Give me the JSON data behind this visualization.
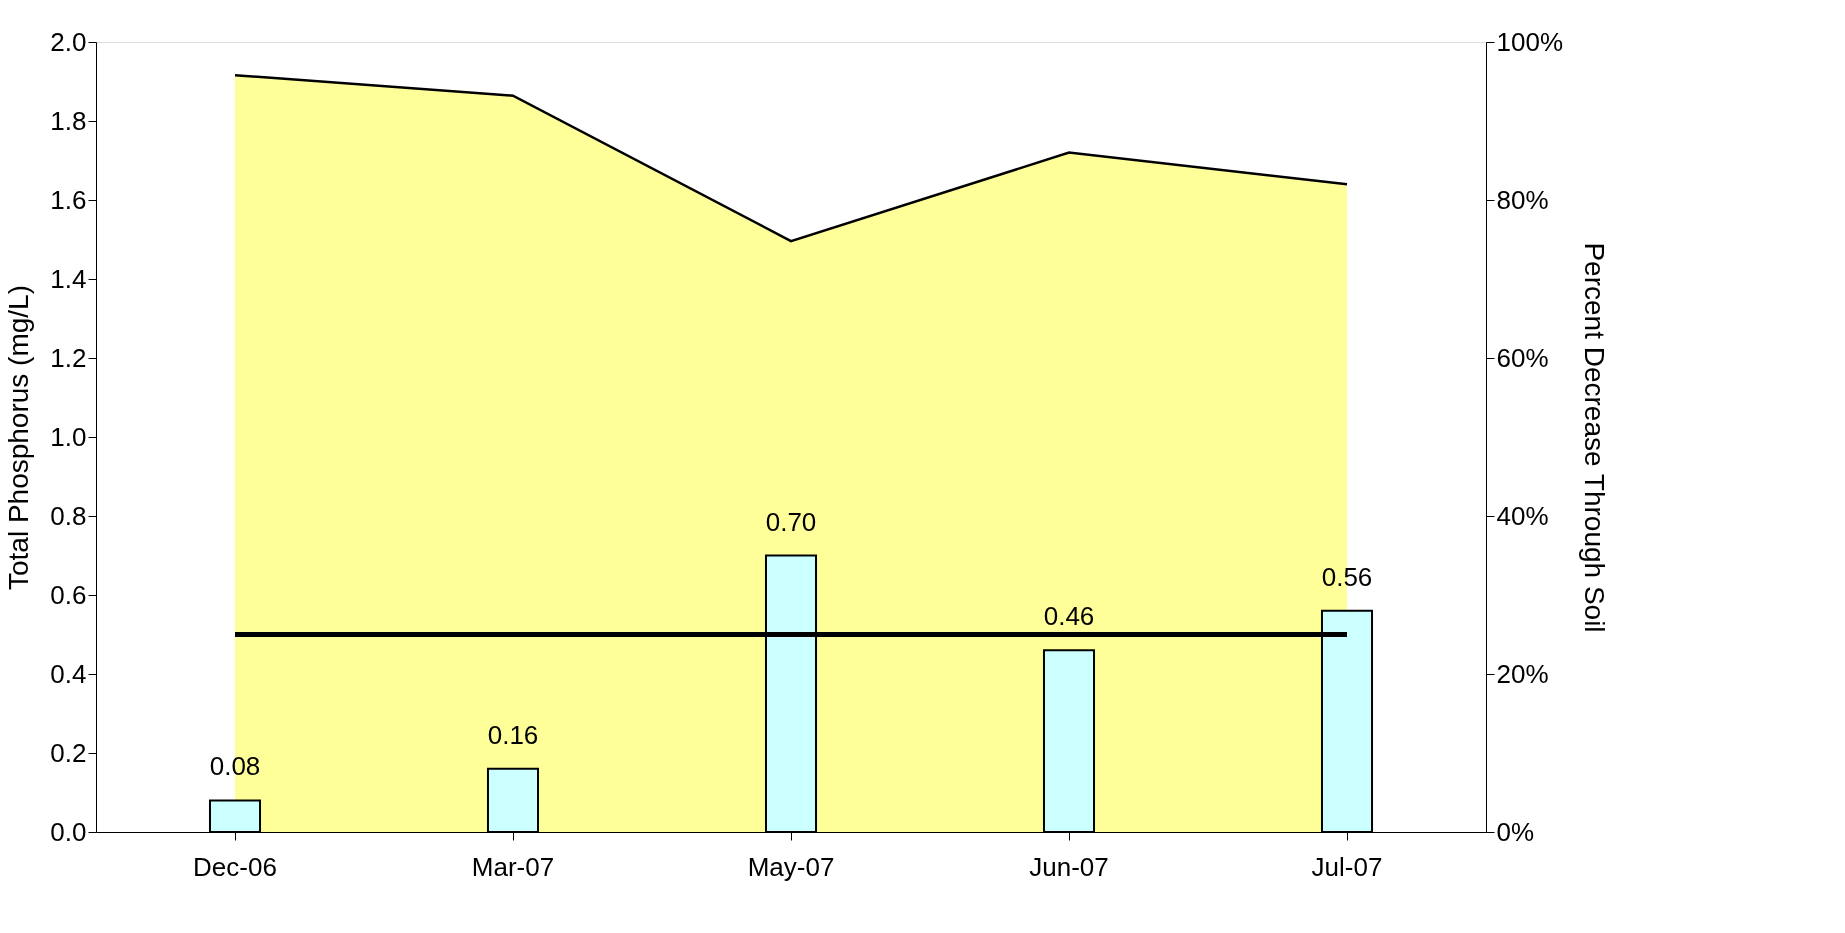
{
  "chart_data": {
    "type": "bar",
    "categories": [
      "Dec-06",
      "Mar-07",
      "May-07",
      "Jun-07",
      "Jul-07"
    ],
    "ylabel": "Total Phosphorus (mg/L)",
    "y2label": "Percent Decrease Through Soil",
    "series": [
      {
        "color": "#ccffff",
        "values": [
          0.08,
          0.16,
          0.7,
          0.46,
          0.56
        ],
        "value_labels": [
          "0.08",
          "0.16",
          "0.70",
          "0.46",
          "0.56"
        ]
      },
      {
        "type": "area",
        "axis": "y2",
        "color": "#ffff99",
        "values": [
          95.8,
          93.2,
          74.8,
          86.0,
          82.0
        ]
      }
    ],
    "ref_lines": [
      {
        "axis": "y",
        "value": 0.5,
        "color": "#000000"
      }
    ],
    "ylim": [
      0,
      2
    ],
    "yticks": [
      {
        "value": 0,
        "label": "0.0"
      },
      0.2,
      0.4,
      0.6,
      0.8,
      {
        "value": 1,
        "label": "1.0"
      },
      1.2,
      1.4,
      1.6,
      1.8,
      {
        "value": 2,
        "label": "2.0"
      }
    ],
    "y2lim": [
      0,
      100
    ],
    "y2ticks": [
      {
        "value": 0,
        "label": "0%"
      },
      {
        "value": 20,
        "label": "20%"
      },
      {
        "value": 40,
        "label": "40%"
      },
      {
        "value": 60,
        "label": "60%"
      },
      {
        "value": 80,
        "label": "80%"
      },
      {
        "value": 100,
        "label": "100%"
      }
    ],
    "grid": false
  }
}
